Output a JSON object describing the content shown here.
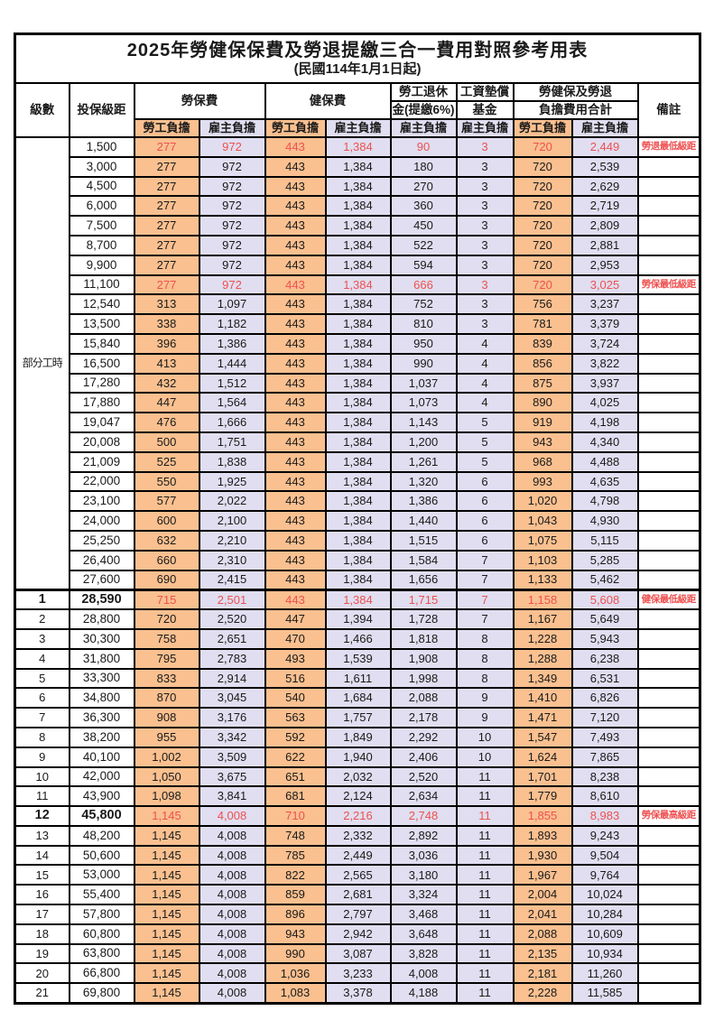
{
  "title": "2025年勞健保保費及勞退提繳三合一費用對照參考用表",
  "subtitle": "(民國114年1月1日起)",
  "colors": {
    "employee_col_bg": "#fac090",
    "employer_col_bg": "#e0def0",
    "highlight_text": "#ee5050",
    "grid": "#000000"
  },
  "header": {
    "level": "級數",
    "bracket": "投保級距",
    "labor_ins": "勞保費",
    "health_ins": "健保費",
    "pension_line1": "勞工退休",
    "pension_line2": "金(提繳6%)",
    "wage_fund_line1": "工資墊償",
    "wage_fund_line2": "基金",
    "total_line1": "勞健保及勞退",
    "total_line2": "負擔費用合計",
    "remark": "備註",
    "employee_burden": "勞工負擔",
    "employer_burden": "雇主負擔"
  },
  "part_time_label": "部分工時",
  "part_time_rowspan": 23,
  "rows": [
    {
      "level": "",
      "bracket": "1,500",
      "li_e": "277",
      "li_r": "972",
      "hi_e": "443",
      "hi_r": "1,384",
      "pen": "90",
      "fund": "3",
      "sum_e": "720",
      "sum_r": "2,449",
      "note": "勞退最低級距",
      "hl": true,
      "bold": false,
      "sec": false
    },
    {
      "level": "",
      "bracket": "3,000",
      "li_e": "277",
      "li_r": "972",
      "hi_e": "443",
      "hi_r": "1,384",
      "pen": "180",
      "fund": "3",
      "sum_e": "720",
      "sum_r": "2,539",
      "note": "",
      "hl": false,
      "bold": false,
      "sec": false
    },
    {
      "level": "",
      "bracket": "4,500",
      "li_e": "277",
      "li_r": "972",
      "hi_e": "443",
      "hi_r": "1,384",
      "pen": "270",
      "fund": "3",
      "sum_e": "720",
      "sum_r": "2,629",
      "note": "",
      "hl": false,
      "bold": false,
      "sec": false
    },
    {
      "level": "",
      "bracket": "6,000",
      "li_e": "277",
      "li_r": "972",
      "hi_e": "443",
      "hi_r": "1,384",
      "pen": "360",
      "fund": "3",
      "sum_e": "720",
      "sum_r": "2,719",
      "note": "",
      "hl": false,
      "bold": false,
      "sec": false
    },
    {
      "level": "",
      "bracket": "7,500",
      "li_e": "277",
      "li_r": "972",
      "hi_e": "443",
      "hi_r": "1,384",
      "pen": "450",
      "fund": "3",
      "sum_e": "720",
      "sum_r": "2,809",
      "note": "",
      "hl": false,
      "bold": false,
      "sec": false
    },
    {
      "level": "",
      "bracket": "8,700",
      "li_e": "277",
      "li_r": "972",
      "hi_e": "443",
      "hi_r": "1,384",
      "pen": "522",
      "fund": "3",
      "sum_e": "720",
      "sum_r": "2,881",
      "note": "",
      "hl": false,
      "bold": false,
      "sec": false
    },
    {
      "level": "",
      "bracket": "9,900",
      "li_e": "277",
      "li_r": "972",
      "hi_e": "443",
      "hi_r": "1,384",
      "pen": "594",
      "fund": "3",
      "sum_e": "720",
      "sum_r": "2,953",
      "note": "",
      "hl": false,
      "bold": false,
      "sec": false
    },
    {
      "level": "",
      "bracket": "11,100",
      "li_e": "277",
      "li_r": "972",
      "hi_e": "443",
      "hi_r": "1,384",
      "pen": "666",
      "fund": "3",
      "sum_e": "720",
      "sum_r": "3,025",
      "note": "勞保最低級距",
      "hl": true,
      "bold": false,
      "sec": false
    },
    {
      "level": "",
      "bracket": "12,540",
      "li_e": "313",
      "li_r": "1,097",
      "hi_e": "443",
      "hi_r": "1,384",
      "pen": "752",
      "fund": "3",
      "sum_e": "756",
      "sum_r": "3,237",
      "note": "",
      "hl": false,
      "bold": false,
      "sec": false
    },
    {
      "level": "",
      "bracket": "13,500",
      "li_e": "338",
      "li_r": "1,182",
      "hi_e": "443",
      "hi_r": "1,384",
      "pen": "810",
      "fund": "3",
      "sum_e": "781",
      "sum_r": "3,379",
      "note": "",
      "hl": false,
      "bold": false,
      "sec": false
    },
    {
      "level": "",
      "bracket": "15,840",
      "li_e": "396",
      "li_r": "1,386",
      "hi_e": "443",
      "hi_r": "1,384",
      "pen": "950",
      "fund": "4",
      "sum_e": "839",
      "sum_r": "3,724",
      "note": "",
      "hl": false,
      "bold": false,
      "sec": false
    },
    {
      "level": "",
      "bracket": "16,500",
      "li_e": "413",
      "li_r": "1,444",
      "hi_e": "443",
      "hi_r": "1,384",
      "pen": "990",
      "fund": "4",
      "sum_e": "856",
      "sum_r": "3,822",
      "note": "",
      "hl": false,
      "bold": false,
      "sec": false
    },
    {
      "level": "",
      "bracket": "17,280",
      "li_e": "432",
      "li_r": "1,512",
      "hi_e": "443",
      "hi_r": "1,384",
      "pen": "1,037",
      "fund": "4",
      "sum_e": "875",
      "sum_r": "3,937",
      "note": "",
      "hl": false,
      "bold": false,
      "sec": false
    },
    {
      "level": "",
      "bracket": "17,880",
      "li_e": "447",
      "li_r": "1,564",
      "hi_e": "443",
      "hi_r": "1,384",
      "pen": "1,073",
      "fund": "4",
      "sum_e": "890",
      "sum_r": "4,025",
      "note": "",
      "hl": false,
      "bold": false,
      "sec": false
    },
    {
      "level": "",
      "bracket": "19,047",
      "li_e": "476",
      "li_r": "1,666",
      "hi_e": "443",
      "hi_r": "1,384",
      "pen": "1,143",
      "fund": "5",
      "sum_e": "919",
      "sum_r": "4,198",
      "note": "",
      "hl": false,
      "bold": false,
      "sec": false
    },
    {
      "level": "",
      "bracket": "20,008",
      "li_e": "500",
      "li_r": "1,751",
      "hi_e": "443",
      "hi_r": "1,384",
      "pen": "1,200",
      "fund": "5",
      "sum_e": "943",
      "sum_r": "4,340",
      "note": "",
      "hl": false,
      "bold": false,
      "sec": false
    },
    {
      "level": "",
      "bracket": "21,009",
      "li_e": "525",
      "li_r": "1,838",
      "hi_e": "443",
      "hi_r": "1,384",
      "pen": "1,261",
      "fund": "5",
      "sum_e": "968",
      "sum_r": "4,488",
      "note": "",
      "hl": false,
      "bold": false,
      "sec": false
    },
    {
      "level": "",
      "bracket": "22,000",
      "li_e": "550",
      "li_r": "1,925",
      "hi_e": "443",
      "hi_r": "1,384",
      "pen": "1,320",
      "fund": "6",
      "sum_e": "993",
      "sum_r": "4,635",
      "note": "",
      "hl": false,
      "bold": false,
      "sec": false
    },
    {
      "level": "",
      "bracket": "23,100",
      "li_e": "577",
      "li_r": "2,022",
      "hi_e": "443",
      "hi_r": "1,384",
      "pen": "1,386",
      "fund": "6",
      "sum_e": "1,020",
      "sum_r": "4,798",
      "note": "",
      "hl": false,
      "bold": false,
      "sec": false
    },
    {
      "level": "",
      "bracket": "24,000",
      "li_e": "600",
      "li_r": "2,100",
      "hi_e": "443",
      "hi_r": "1,384",
      "pen": "1,440",
      "fund": "6",
      "sum_e": "1,043",
      "sum_r": "4,930",
      "note": "",
      "hl": false,
      "bold": false,
      "sec": false
    },
    {
      "level": "",
      "bracket": "25,250",
      "li_e": "632",
      "li_r": "2,210",
      "hi_e": "443",
      "hi_r": "1,384",
      "pen": "1,515",
      "fund": "6",
      "sum_e": "1,075",
      "sum_r": "5,115",
      "note": "",
      "hl": false,
      "bold": false,
      "sec": false
    },
    {
      "level": "",
      "bracket": "26,400",
      "li_e": "660",
      "li_r": "2,310",
      "hi_e": "443",
      "hi_r": "1,384",
      "pen": "1,584",
      "fund": "7",
      "sum_e": "1,103",
      "sum_r": "5,285",
      "note": "",
      "hl": false,
      "bold": false,
      "sec": false
    },
    {
      "level": "",
      "bracket": "27,600",
      "li_e": "690",
      "li_r": "2,415",
      "hi_e": "443",
      "hi_r": "1,384",
      "pen": "1,656",
      "fund": "7",
      "sum_e": "1,133",
      "sum_r": "5,462",
      "note": "",
      "hl": false,
      "bold": false,
      "sec": false
    },
    {
      "level": "1",
      "bracket": "28,590",
      "li_e": "715",
      "li_r": "2,501",
      "hi_e": "443",
      "hi_r": "1,384",
      "pen": "1,715",
      "fund": "7",
      "sum_e": "1,158",
      "sum_r": "5,608",
      "note": "健保最低級距",
      "hl": true,
      "bold": true,
      "sec": true
    },
    {
      "level": "2",
      "bracket": "28,800",
      "li_e": "720",
      "li_r": "2,520",
      "hi_e": "447",
      "hi_r": "1,394",
      "pen": "1,728",
      "fund": "7",
      "sum_e": "1,167",
      "sum_r": "5,649",
      "note": "",
      "hl": false,
      "bold": false,
      "sec": false
    },
    {
      "level": "3",
      "bracket": "30,300",
      "li_e": "758",
      "li_r": "2,651",
      "hi_e": "470",
      "hi_r": "1,466",
      "pen": "1,818",
      "fund": "8",
      "sum_e": "1,228",
      "sum_r": "5,943",
      "note": "",
      "hl": false,
      "bold": false,
      "sec": false
    },
    {
      "level": "4",
      "bracket": "31,800",
      "li_e": "795",
      "li_r": "2,783",
      "hi_e": "493",
      "hi_r": "1,539",
      "pen": "1,908",
      "fund": "8",
      "sum_e": "1,288",
      "sum_r": "6,238",
      "note": "",
      "hl": false,
      "bold": false,
      "sec": false
    },
    {
      "level": "5",
      "bracket": "33,300",
      "li_e": "833",
      "li_r": "2,914",
      "hi_e": "516",
      "hi_r": "1,611",
      "pen": "1,998",
      "fund": "8",
      "sum_e": "1,349",
      "sum_r": "6,531",
      "note": "",
      "hl": false,
      "bold": false,
      "sec": false
    },
    {
      "level": "6",
      "bracket": "34,800",
      "li_e": "870",
      "li_r": "3,045",
      "hi_e": "540",
      "hi_r": "1,684",
      "pen": "2,088",
      "fund": "9",
      "sum_e": "1,410",
      "sum_r": "6,826",
      "note": "",
      "hl": false,
      "bold": false,
      "sec": false
    },
    {
      "level": "7",
      "bracket": "36,300",
      "li_e": "908",
      "li_r": "3,176",
      "hi_e": "563",
      "hi_r": "1,757",
      "pen": "2,178",
      "fund": "9",
      "sum_e": "1,471",
      "sum_r": "7,120",
      "note": "",
      "hl": false,
      "bold": false,
      "sec": false
    },
    {
      "level": "8",
      "bracket": "38,200",
      "li_e": "955",
      "li_r": "3,342",
      "hi_e": "592",
      "hi_r": "1,849",
      "pen": "2,292",
      "fund": "10",
      "sum_e": "1,547",
      "sum_r": "7,493",
      "note": "",
      "hl": false,
      "bold": false,
      "sec": false
    },
    {
      "level": "9",
      "bracket": "40,100",
      "li_e": "1,002",
      "li_r": "3,509",
      "hi_e": "622",
      "hi_r": "1,940",
      "pen": "2,406",
      "fund": "10",
      "sum_e": "1,624",
      "sum_r": "7,865",
      "note": "",
      "hl": false,
      "bold": false,
      "sec": false
    },
    {
      "level": "10",
      "bracket": "42,000",
      "li_e": "1,050",
      "li_r": "3,675",
      "hi_e": "651",
      "hi_r": "2,032",
      "pen": "2,520",
      "fund": "11",
      "sum_e": "1,701",
      "sum_r": "8,238",
      "note": "",
      "hl": false,
      "bold": false,
      "sec": false
    },
    {
      "level": "11",
      "bracket": "43,900",
      "li_e": "1,098",
      "li_r": "3,841",
      "hi_e": "681",
      "hi_r": "2,124",
      "pen": "2,634",
      "fund": "11",
      "sum_e": "1,779",
      "sum_r": "8,610",
      "note": "",
      "hl": false,
      "bold": false,
      "sec": false
    },
    {
      "level": "12",
      "bracket": "45,800",
      "li_e": "1,145",
      "li_r": "4,008",
      "hi_e": "710",
      "hi_r": "2,216",
      "pen": "2,748",
      "fund": "11",
      "sum_e": "1,855",
      "sum_r": "8,983",
      "note": "勞保最高級距",
      "hl": true,
      "bold": true,
      "sec": false
    },
    {
      "level": "13",
      "bracket": "48,200",
      "li_e": "1,145",
      "li_r": "4,008",
      "hi_e": "748",
      "hi_r": "2,332",
      "pen": "2,892",
      "fund": "11",
      "sum_e": "1,893",
      "sum_r": "9,243",
      "note": "",
      "hl": false,
      "bold": false,
      "sec": false
    },
    {
      "level": "14",
      "bracket": "50,600",
      "li_e": "1,145",
      "li_r": "4,008",
      "hi_e": "785",
      "hi_r": "2,449",
      "pen": "3,036",
      "fund": "11",
      "sum_e": "1,930",
      "sum_r": "9,504",
      "note": "",
      "hl": false,
      "bold": false,
      "sec": false
    },
    {
      "level": "15",
      "bracket": "53,000",
      "li_e": "1,145",
      "li_r": "4,008",
      "hi_e": "822",
      "hi_r": "2,565",
      "pen": "3,180",
      "fund": "11",
      "sum_e": "1,967",
      "sum_r": "9,764",
      "note": "",
      "hl": false,
      "bold": false,
      "sec": false
    },
    {
      "level": "16",
      "bracket": "55,400",
      "li_e": "1,145",
      "li_r": "4,008",
      "hi_e": "859",
      "hi_r": "2,681",
      "pen": "3,324",
      "fund": "11",
      "sum_e": "2,004",
      "sum_r": "10,024",
      "note": "",
      "hl": false,
      "bold": false,
      "sec": false
    },
    {
      "level": "17",
      "bracket": "57,800",
      "li_e": "1,145",
      "li_r": "4,008",
      "hi_e": "896",
      "hi_r": "2,797",
      "pen": "3,468",
      "fund": "11",
      "sum_e": "2,041",
      "sum_r": "10,284",
      "note": "",
      "hl": false,
      "bold": false,
      "sec": false
    },
    {
      "level": "18",
      "bracket": "60,800",
      "li_e": "1,145",
      "li_r": "4,008",
      "hi_e": "943",
      "hi_r": "2,942",
      "pen": "3,648",
      "fund": "11",
      "sum_e": "2,088",
      "sum_r": "10,609",
      "note": "",
      "hl": false,
      "bold": false,
      "sec": false
    },
    {
      "level": "19",
      "bracket": "63,800",
      "li_e": "1,145",
      "li_r": "4,008",
      "hi_e": "990",
      "hi_r": "3,087",
      "pen": "3,828",
      "fund": "11",
      "sum_e": "2,135",
      "sum_r": "10,934",
      "note": "",
      "hl": false,
      "bold": false,
      "sec": false
    },
    {
      "level": "20",
      "bracket": "66,800",
      "li_e": "1,145",
      "li_r": "4,008",
      "hi_e": "1,036",
      "hi_r": "3,233",
      "pen": "4,008",
      "fund": "11",
      "sum_e": "2,181",
      "sum_r": "11,260",
      "note": "",
      "hl": false,
      "bold": false,
      "sec": false
    },
    {
      "level": "21",
      "bracket": "69,800",
      "li_e": "1,145",
      "li_r": "4,008",
      "hi_e": "1,083",
      "hi_r": "3,378",
      "pen": "4,188",
      "fund": "11",
      "sum_e": "2,228",
      "sum_r": "11,585",
      "note": "",
      "hl": false,
      "bold": false,
      "sec": false
    }
  ]
}
